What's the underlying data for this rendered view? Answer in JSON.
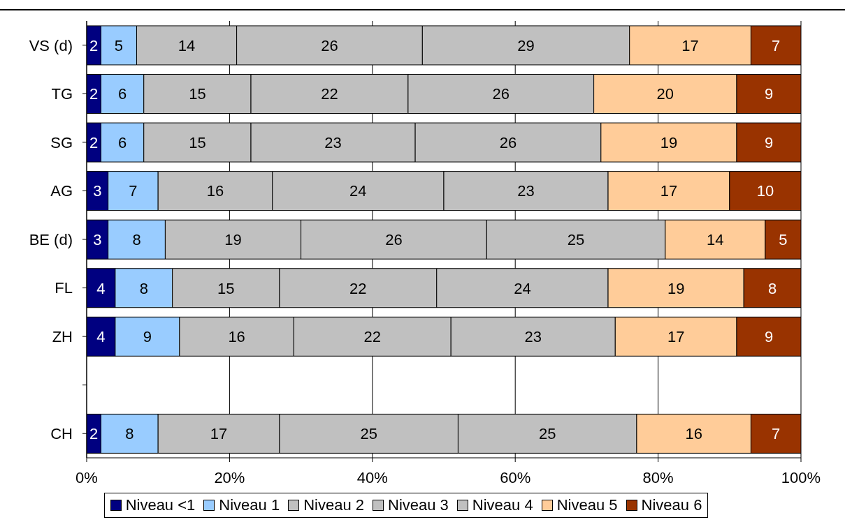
{
  "chart_data": {
    "type": "bar",
    "orientation": "horizontal",
    "stacked": true,
    "data_labels": true,
    "grid": "x",
    "legend": "bottom",
    "categories": [
      "VS (d)",
      "TG",
      "SG",
      "AG",
      "BE (d)",
      "FL",
      "ZH",
      null,
      "CH"
    ],
    "xlim": [
      0,
      100
    ],
    "xticks": [
      {
        "value": 0,
        "label": "0%"
      },
      {
        "value": 20,
        "label": "20%"
      },
      {
        "value": 40,
        "label": "40%"
      },
      {
        "value": 60,
        "label": "60%"
      },
      {
        "value": 80,
        "label": "80%"
      },
      {
        "value": 100,
        "label": "100%"
      }
    ],
    "series": [
      {
        "name": "Niveau <1",
        "color": "#000080",
        "values": [
          2,
          2,
          2,
          3,
          3,
          4,
          4,
          null,
          2
        ]
      },
      {
        "name": "Niveau 1",
        "color": "#99ccff",
        "values": [
          5,
          6,
          6,
          7,
          8,
          8,
          9,
          null,
          8
        ]
      },
      {
        "name": "Niveau 2",
        "color": "#c0c0c0",
        "values": [
          14,
          15,
          15,
          16,
          19,
          15,
          16,
          null,
          17
        ]
      },
      {
        "name": "Niveau 3",
        "color": "#c0c0c0",
        "values": [
          26,
          22,
          23,
          24,
          26,
          22,
          22,
          null,
          25
        ]
      },
      {
        "name": "Niveau 4",
        "color": "#c0c0c0",
        "values": [
          29,
          26,
          26,
          23,
          25,
          24,
          23,
          null,
          25
        ]
      },
      {
        "name": "Niveau 5",
        "color": "#ffcc99",
        "values": [
          17,
          20,
          19,
          17,
          14,
          19,
          17,
          null,
          16
        ]
      },
      {
        "name": "Niveau 6",
        "color": "#993300",
        "values": [
          7,
          9,
          9,
          10,
          5,
          8,
          9,
          null,
          7
        ]
      }
    ]
  }
}
